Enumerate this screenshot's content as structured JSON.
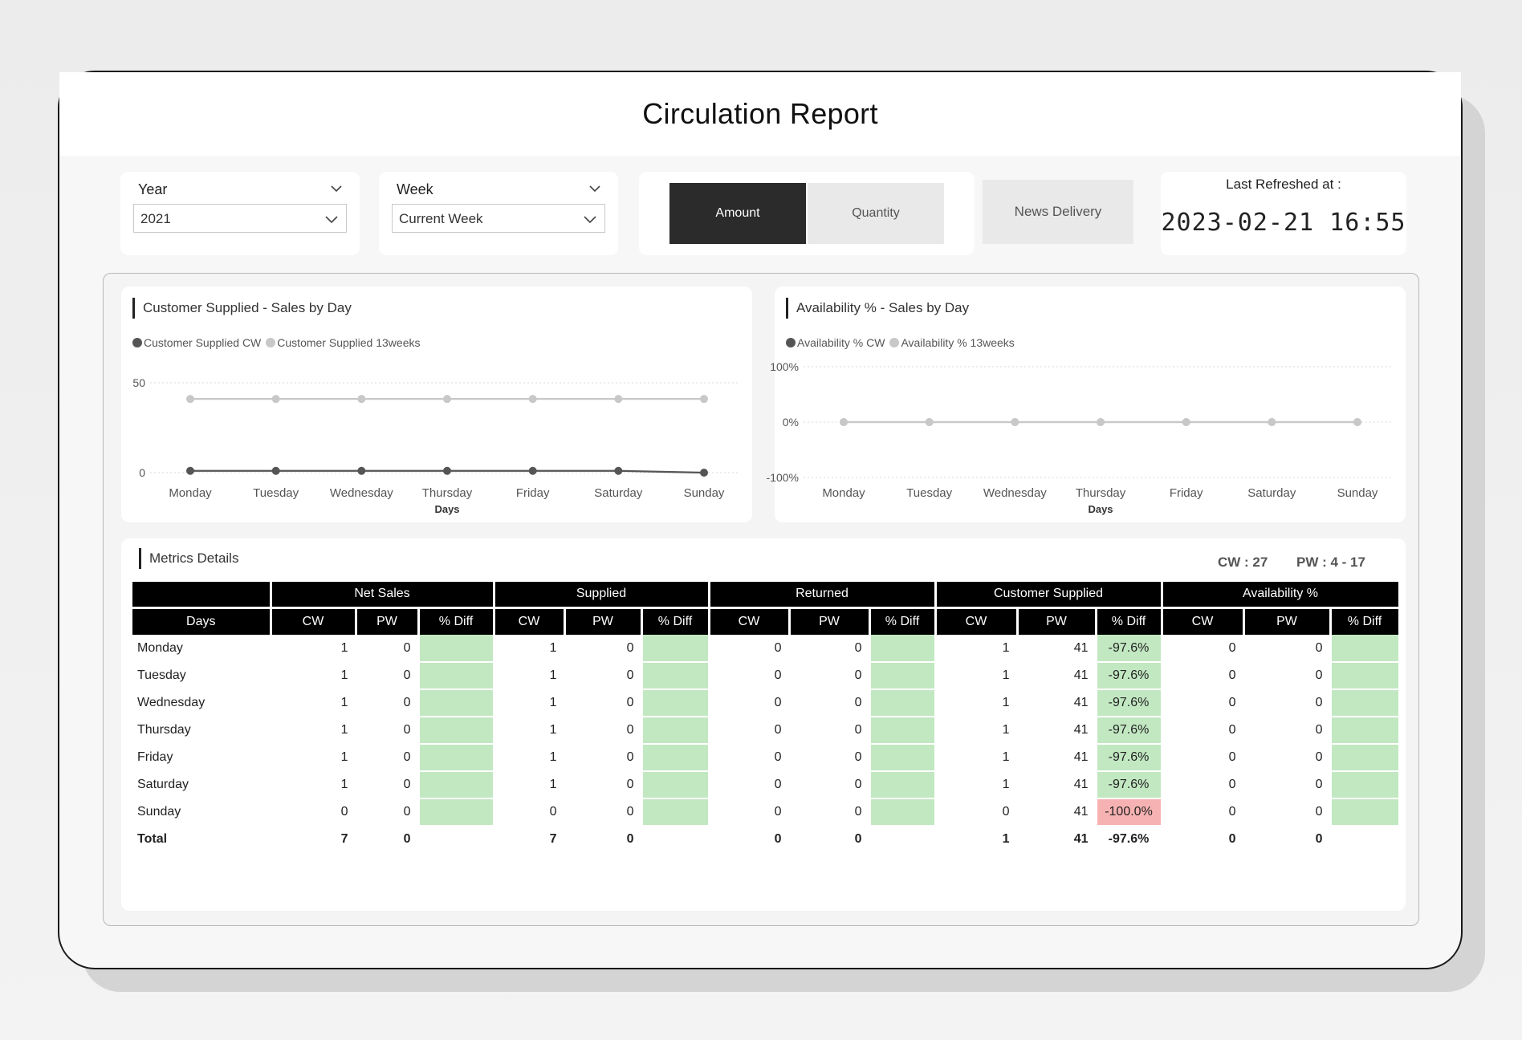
{
  "app": {
    "title": "Circulation Report"
  },
  "filters": {
    "year": {
      "label": "Year",
      "value": "2021"
    },
    "week": {
      "label": "Week",
      "value": "Current Week"
    }
  },
  "toggle": {
    "amount_label": "Amount",
    "quantity_label": "Quantity",
    "active": "Amount"
  },
  "news_delivery_label": "News Delivery",
  "refresh": {
    "label": "Last Refreshed at :",
    "value": "2023-02-21 16:55"
  },
  "colors": {
    "active_button": "#2b2b2b",
    "inactive_button": "#e9e9e9",
    "green_cell": "#c2e8c2",
    "red_cell": "#f6b2b2",
    "series_dark": "#555555",
    "series_light": "#c8c8c8"
  },
  "charts": {
    "customer_supplied": {
      "title": "Customer Supplied - Sales by Day",
      "legend": [
        "Customer Supplied CW",
        "Customer Supplied 13weeks"
      ],
      "xlabel": "Days",
      "ytick_labels": [
        "50",
        "0"
      ]
    },
    "availability": {
      "title": "Availability % - Sales by Day",
      "legend": [
        "Availability % CW",
        "Availability % 13weeks"
      ],
      "xlabel": "Days",
      "ytick_labels": [
        "100%",
        "0%",
        "-100%"
      ]
    }
  },
  "chart_data": [
    {
      "type": "line",
      "title": "Customer Supplied - Sales by Day",
      "xlabel": "Days",
      "ylabel": "",
      "categories": [
        "Monday",
        "Tuesday",
        "Wednesday",
        "Thursday",
        "Friday",
        "Saturday",
        "Sunday"
      ],
      "ylim": [
        0,
        50
      ],
      "yticks": [
        0,
        50
      ],
      "series": [
        {
          "name": "Customer Supplied CW",
          "values": [
            1,
            1,
            1,
            1,
            1,
            1,
            0
          ]
        },
        {
          "name": "Customer Supplied 13weeks",
          "values": [
            41,
            41,
            41,
            41,
            41,
            41,
            41
          ]
        }
      ],
      "legend": "top-left",
      "grid": true
    },
    {
      "type": "line",
      "title": "Availability % - Sales by Day",
      "xlabel": "Days",
      "ylabel": "",
      "categories": [
        "Monday",
        "Tuesday",
        "Wednesday",
        "Thursday",
        "Friday",
        "Saturday",
        "Sunday"
      ],
      "ylim": [
        -100,
        100
      ],
      "yticks": [
        -100,
        0,
        100
      ],
      "series": [
        {
          "name": "Availability % CW",
          "values": [
            0,
            0,
            0,
            0,
            0,
            0,
            0
          ]
        },
        {
          "name": "Availability % 13weeks",
          "values": [
            0,
            0,
            0,
            0,
            0,
            0,
            0
          ]
        }
      ],
      "legend": "top-left",
      "grid": true
    }
  ],
  "metrics": {
    "title": "Metrics Details",
    "cw_text": "CW : 27",
    "pw_text": "PW : 4 - 17",
    "groups": [
      "Net Sales",
      "Supplied",
      "Returned",
      "Customer Supplied",
      "Availability %"
    ],
    "days_header": "Days",
    "sub_headers": [
      "CW",
      "PW",
      "% Diff"
    ],
    "rows": [
      {
        "day": "Monday",
        "cells": [
          [
            "1",
            "0",
            ""
          ],
          [
            "1",
            "0",
            ""
          ],
          [
            "0",
            "0",
            ""
          ],
          [
            "1",
            "41",
            "-97.6%"
          ],
          [
            "0",
            "0",
            ""
          ]
        ]
      },
      {
        "day": "Tuesday",
        "cells": [
          [
            "1",
            "0",
            ""
          ],
          [
            "1",
            "0",
            ""
          ],
          [
            "0",
            "0",
            ""
          ],
          [
            "1",
            "41",
            "-97.6%"
          ],
          [
            "0",
            "0",
            ""
          ]
        ]
      },
      {
        "day": "Wednesday",
        "cells": [
          [
            "1",
            "0",
            ""
          ],
          [
            "1",
            "0",
            ""
          ],
          [
            "0",
            "0",
            ""
          ],
          [
            "1",
            "41",
            "-97.6%"
          ],
          [
            "0",
            "0",
            ""
          ]
        ]
      },
      {
        "day": "Thursday",
        "cells": [
          [
            "1",
            "0",
            ""
          ],
          [
            "1",
            "0",
            ""
          ],
          [
            "0",
            "0",
            ""
          ],
          [
            "1",
            "41",
            "-97.6%"
          ],
          [
            "0",
            "0",
            ""
          ]
        ]
      },
      {
        "day": "Friday",
        "cells": [
          [
            "1",
            "0",
            ""
          ],
          [
            "1",
            "0",
            ""
          ],
          [
            "0",
            "0",
            ""
          ],
          [
            "1",
            "41",
            "-97.6%"
          ],
          [
            "0",
            "0",
            ""
          ]
        ]
      },
      {
        "day": "Saturday",
        "cells": [
          [
            "1",
            "0",
            ""
          ],
          [
            "1",
            "0",
            ""
          ],
          [
            "0",
            "0",
            ""
          ],
          [
            "1",
            "41",
            "-97.6%"
          ],
          [
            "0",
            "0",
            ""
          ]
        ]
      },
      {
        "day": "Sunday",
        "cells": [
          [
            "0",
            "0",
            ""
          ],
          [
            "0",
            "0",
            ""
          ],
          [
            "0",
            "0",
            ""
          ],
          [
            "0",
            "41",
            "-100.0%"
          ],
          [
            "0",
            "0",
            ""
          ]
        ]
      }
    ],
    "diff_colors": [
      [
        "green",
        "green",
        "green",
        "green",
        "green"
      ],
      [
        "green",
        "green",
        "green",
        "green",
        "green"
      ],
      [
        "green",
        "green",
        "green",
        "green",
        "green"
      ],
      [
        "green",
        "green",
        "green",
        "green",
        "green"
      ],
      [
        "green",
        "green",
        "green",
        "green",
        "green"
      ],
      [
        "green",
        "green",
        "green",
        "green",
        "green"
      ],
      [
        "green",
        "green",
        "green",
        "red",
        "green"
      ]
    ],
    "total": {
      "label": "Total",
      "cells": [
        [
          "7",
          "0",
          ""
        ],
        [
          "7",
          "0",
          ""
        ],
        [
          "0",
          "0",
          ""
        ],
        [
          "1",
          "41",
          "-97.6%"
        ],
        [
          "0",
          "0",
          ""
        ]
      ]
    }
  }
}
